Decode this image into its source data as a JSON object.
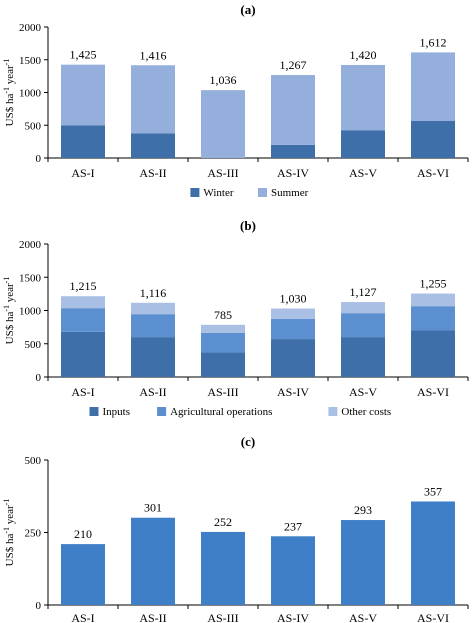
{
  "chart_data": [
    {
      "panel_label": "(a)",
      "type": "bar",
      "stacked": true,
      "categories": [
        "AS-I",
        "AS-II",
        "AS-III",
        "AS-IV",
        "AS-V",
        "AS-VI"
      ],
      "series": [
        {
          "name": "Winter",
          "values": [
            500,
            375,
            0,
            200,
            420,
            565
          ],
          "color": "#3f6fa8"
        },
        {
          "name": "Summer",
          "values": [
            925,
            1041,
            1036,
            1067,
            1000,
            1047
          ],
          "color": "#94afdb"
        }
      ],
      "totals": [
        "1,425",
        "1,416",
        "1,036",
        "1,267",
        "1,420",
        "1,612"
      ],
      "ylabel_parts": [
        "US$ ha",
        "-1",
        " year",
        "-1"
      ],
      "ylim": [
        0,
        2000
      ],
      "yticks": [
        0,
        500,
        1000,
        1500,
        2000
      ],
      "legend_position": "bottom"
    },
    {
      "panel_label": "(b)",
      "type": "bar",
      "stacked": true,
      "categories": [
        "AS-I",
        "AS-II",
        "AS-III",
        "AS-IV",
        "AS-V",
        "AS-VI"
      ],
      "series": [
        {
          "name": "Inputs",
          "values": [
            680,
            600,
            370,
            570,
            600,
            700
          ],
          "color": "#3f6fa8"
        },
        {
          "name": "Agricultural operations",
          "values": [
            355,
            345,
            295,
            305,
            360,
            365
          ],
          "color": "#5b8fd0"
        },
        {
          "name": "Other costs",
          "values": [
            180,
            171,
            120,
            155,
            167,
            190
          ],
          "color": "#a9c0e4"
        }
      ],
      "totals": [
        "1,215",
        "1,116",
        "785",
        "1,030",
        "1,127",
        "1,255"
      ],
      "ylabel_parts": [
        "US$ ha",
        "-1",
        " year",
        "-1"
      ],
      "ylim": [
        0,
        2000
      ],
      "yticks": [
        0,
        500,
        1000,
        1500,
        2000
      ],
      "legend_position": "bottom"
    },
    {
      "panel_label": "(c)",
      "type": "bar",
      "stacked": false,
      "categories": [
        "AS-I",
        "AS-II",
        "AS-III",
        "AS-IV",
        "AS-V",
        "AS-VI"
      ],
      "series": [
        {
          "values": [
            210,
            301,
            252,
            237,
            293,
            357
          ],
          "color": "#3f7fc8"
        }
      ],
      "totals": [
        "210",
        "301",
        "252",
        "237",
        "293",
        "357"
      ],
      "ylabel_parts": [
        "US$ ha",
        "-1",
        " year",
        "-1"
      ],
      "ylim": [
        0,
        500
      ],
      "yticks": [
        0,
        250,
        500
      ]
    }
  ]
}
